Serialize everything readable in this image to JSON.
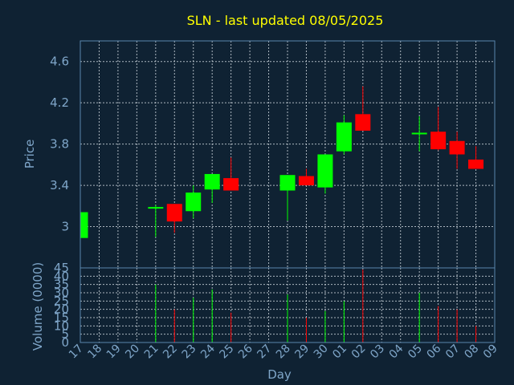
{
  "chart_data": {
    "type": "candlestick",
    "title": "SLN - last updated 08/05/2025",
    "xlabel": "Day",
    "price_panel": {
      "ylabel": "Price",
      "ylim": [
        2.6,
        4.8
      ],
      "yticks": [
        "3",
        "3.4",
        "3.8",
        "4.2",
        "4.6"
      ]
    },
    "volume_panel": {
      "ylabel": "Volume (0000)",
      "ylim": [
        0,
        45
      ],
      "yticks": [
        "0",
        "5",
        "10",
        "15",
        "20",
        "25",
        "30",
        "35",
        "40",
        "45"
      ]
    },
    "x_tick_labels": [
      "17",
      "18",
      "19",
      "20",
      "21",
      "22",
      "23",
      "24",
      "25",
      "26",
      "27",
      "28",
      "29",
      "30",
      "01",
      "02",
      "03",
      "04",
      "05",
      "06",
      "07",
      "08",
      "09"
    ],
    "colors": {
      "up": "#00ff00",
      "down": "#ff0000",
      "background": "#0f2233",
      "title": "#ffff00",
      "axis_text": "#7fa6c9",
      "frame": "#5a86ad"
    },
    "candles": [
      {
        "day": "17",
        "open": 2.89,
        "high": 3.14,
        "low": 2.89,
        "close": 3.14
      },
      {
        "day": "21",
        "open": 3.18,
        "high": 3.21,
        "low": 2.9,
        "close": 3.19
      },
      {
        "day": "22",
        "open": 3.22,
        "high": 3.22,
        "low": 2.94,
        "close": 3.05
      },
      {
        "day": "23",
        "open": 3.15,
        "high": 3.4,
        "low": 3.08,
        "close": 3.33
      },
      {
        "day": "24",
        "open": 3.36,
        "high": 3.51,
        "low": 3.23,
        "close": 3.51
      },
      {
        "day": "25",
        "open": 3.47,
        "high": 3.67,
        "low": 3.35,
        "close": 3.35
      },
      {
        "day": "28",
        "open": 3.35,
        "high": 3.5,
        "low": 3.06,
        "close": 3.5
      },
      {
        "day": "29",
        "open": 3.49,
        "high": 3.56,
        "low": 3.4,
        "close": 3.4
      },
      {
        "day": "30",
        "open": 3.38,
        "high": 3.7,
        "low": 3.32,
        "close": 3.7
      },
      {
        "day": "01",
        "open": 3.73,
        "high": 4.08,
        "low": 3.7,
        "close": 4.01
      },
      {
        "day": "02",
        "open": 4.09,
        "high": 4.36,
        "low": 3.93,
        "close": 3.93
      },
      {
        "day": "05",
        "open": 3.9,
        "high": 4.07,
        "low": 3.73,
        "close": 3.91
      },
      {
        "day": "06",
        "open": 3.92,
        "high": 4.16,
        "low": 3.74,
        "close": 3.75
      },
      {
        "day": "07",
        "open": 3.83,
        "high": 3.92,
        "low": 3.56,
        "close": 3.7
      },
      {
        "day": "08",
        "open": 3.65,
        "high": 3.78,
        "low": 3.56,
        "close": 3.56
      }
    ],
    "volume": [
      {
        "day": "21",
        "value": 35,
        "color": "up"
      },
      {
        "day": "22",
        "value": 20,
        "color": "down"
      },
      {
        "day": "23",
        "value": 27,
        "color": "up"
      },
      {
        "day": "24",
        "value": 32,
        "color": "up"
      },
      {
        "day": "25",
        "value": 18,
        "color": "down"
      },
      {
        "day": "28",
        "value": 29,
        "color": "up"
      },
      {
        "day": "29",
        "value": 15,
        "color": "down"
      },
      {
        "day": "30",
        "value": 19,
        "color": "up"
      },
      {
        "day": "01",
        "value": 25,
        "color": "up"
      },
      {
        "day": "02",
        "value": 44,
        "color": "down"
      },
      {
        "day": "05",
        "value": 30,
        "color": "up"
      },
      {
        "day": "06",
        "value": 22,
        "color": "down"
      },
      {
        "day": "07",
        "value": 20,
        "color": "down"
      },
      {
        "day": "08",
        "value": 10,
        "color": "down"
      }
    ]
  }
}
